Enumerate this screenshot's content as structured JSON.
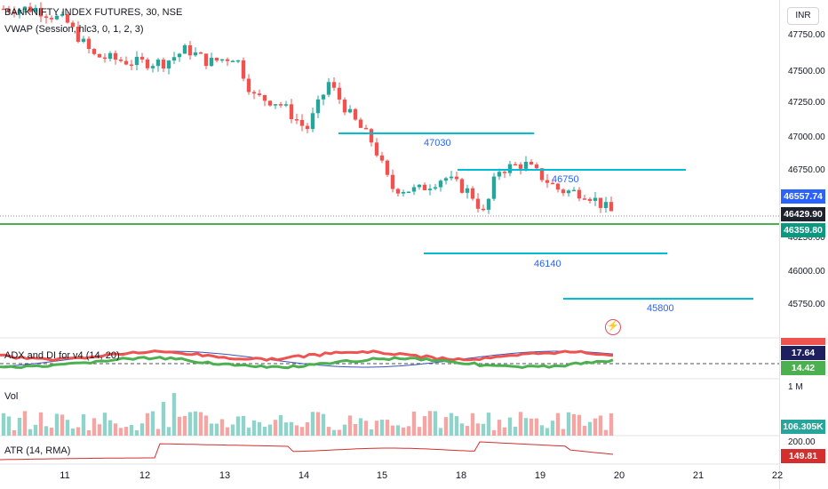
{
  "header": {
    "symbol_line": "BANKNIFTY INDEX FUTURES, 30, NSE",
    "vwap_line": "VWAP (Session, hlc3, 0, 1, 2, 3)",
    "currency_button": "INR"
  },
  "price_axis": {
    "ticks": [
      "47750.00",
      "47500.00",
      "47250.00",
      "47000.00",
      "46750.00",
      "46250.00",
      "46000.00",
      "45750.00"
    ],
    "tags": {
      "blue": "46557.74",
      "dark": "46429.90",
      "green": "46359.80"
    },
    "colors": {
      "up": "#26a69a",
      "down": "#ef5350",
      "green_line": "#4caf50",
      "level_line": "#00bcd4",
      "label": "#2962ff"
    }
  },
  "levels": {
    "l1": "47030",
    "l2": "46750",
    "l3": "46140",
    "l4": "45800"
  },
  "adx_pane": {
    "title": "ADX and DI for v4 (14, 20)",
    "value_adx": "17.64",
    "value_di": "14.42"
  },
  "vol_pane": {
    "title": "Vol",
    "scale_label": "1 M",
    "value": "106.305K"
  },
  "atr_pane": {
    "title": "ATR (14, RMA)",
    "scale_label": "200.00",
    "value": "149.81"
  },
  "time_axis": [
    "11",
    "12",
    "13",
    "14",
    "15",
    "18",
    "19",
    "20",
    "21",
    "22"
  ],
  "icons": {
    "alert": "lightning-icon"
  }
}
